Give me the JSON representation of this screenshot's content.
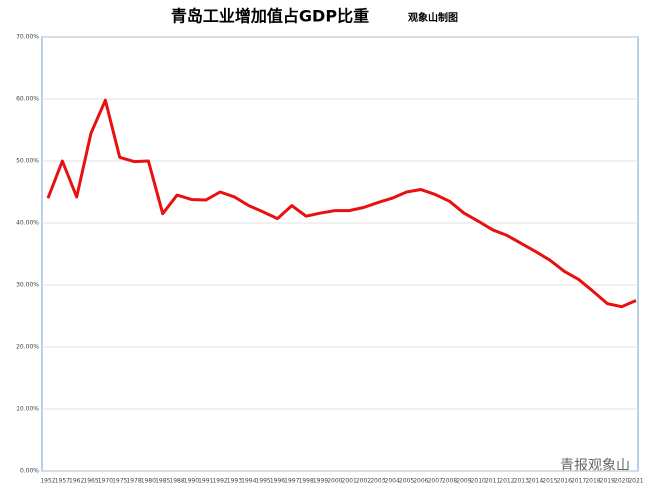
{
  "chart_data": {
    "type": "line",
    "title": "青岛工业增加值占GDP比重",
    "subtitle": "观象山制图",
    "watermark": "青报观象山",
    "categories": [
      "1952",
      "1957",
      "1962",
      "1965",
      "1970",
      "1975",
      "1978",
      "1980",
      "1985",
      "1988",
      "1990",
      "1991",
      "1992",
      "1993",
      "1994",
      "1995",
      "1996",
      "1997",
      "1998",
      "1999",
      "2000",
      "2001",
      "2002",
      "2003",
      "2004",
      "2005",
      "2006",
      "2007",
      "2008",
      "2009",
      "2010",
      "2011",
      "2012",
      "2013",
      "2014",
      "2015",
      "2016",
      "2017",
      "2018",
      "2019",
      "2020",
      "2021"
    ],
    "series": [
      {
        "color": "#e81010",
        "values": [
          44,
          50,
          44.2,
          54.5,
          59.8,
          50.6,
          49.9,
          50,
          41.5,
          44.5,
          43.8,
          43.7,
          45,
          44.2,
          42.8,
          41.8,
          40.7,
          42.8,
          41.1,
          41.6,
          42,
          42,
          42.5,
          43.3,
          44,
          45,
          45.4,
          44.6,
          43.5,
          41.6,
          40.3,
          38.9,
          38,
          36.7,
          35.4,
          34,
          32.2,
          30.9,
          29,
          27,
          26.5,
          27.5
        ]
      }
    ],
    "ylim": [
      0,
      70
    ],
    "yticks": [
      {
        "value": 0,
        "label": "0.00%"
      },
      {
        "value": 10,
        "label": "10.00%"
      },
      {
        "value": 20,
        "label": "20.00%"
      },
      {
        "value": 30,
        "label": "30.00%"
      },
      {
        "value": 40,
        "label": "40.00%"
      },
      {
        "value": 50,
        "label": "50.00%"
      },
      {
        "value": 60,
        "label": "60.00%"
      },
      {
        "value": 70,
        "label": "70.00%"
      }
    ],
    "grid": true
  }
}
